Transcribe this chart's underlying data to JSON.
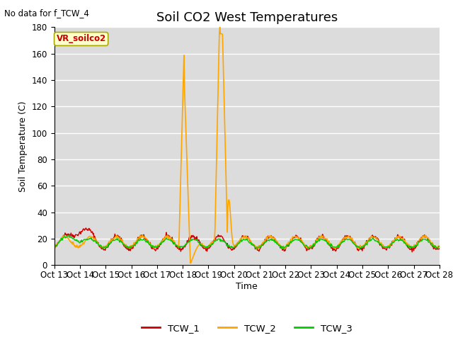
{
  "title": "Soil CO2 West Temperatures",
  "no_data_label": "No data for f_TCW_4",
  "annotation_label": "VR_soilco2",
  "ylabel": "Soil Temperature (C)",
  "xlabel": "Time",
  "ylim": [
    0,
    180
  ],
  "yticks": [
    0,
    20,
    40,
    60,
    80,
    100,
    120,
    140,
    160,
    180
  ],
  "xtick_labels": [
    "Oct 13",
    "Oct 14",
    "Oct 15",
    "Oct 16",
    "Oct 17",
    "Oct 18",
    "Oct 19",
    "Oct 20",
    "Oct 21",
    "Oct 22",
    "Oct 23",
    "Oct 24",
    "Oct 25",
    "Oct 26",
    "Oct 27",
    "Oct 28"
  ],
  "line_colors": {
    "TCW_1": "#cc0000",
    "TCW_2": "#ffa500",
    "TCW_3": "#00cc00"
  },
  "legend_entries": [
    "TCW_1",
    "TCW_2",
    "TCW_3"
  ],
  "plot_bg_color": "#dcdcdc",
  "fig_bg_color": "#ffffff",
  "grid_color": "#ffffff",
  "title_fontsize": 13,
  "label_fontsize": 9,
  "tick_fontsize": 8.5
}
